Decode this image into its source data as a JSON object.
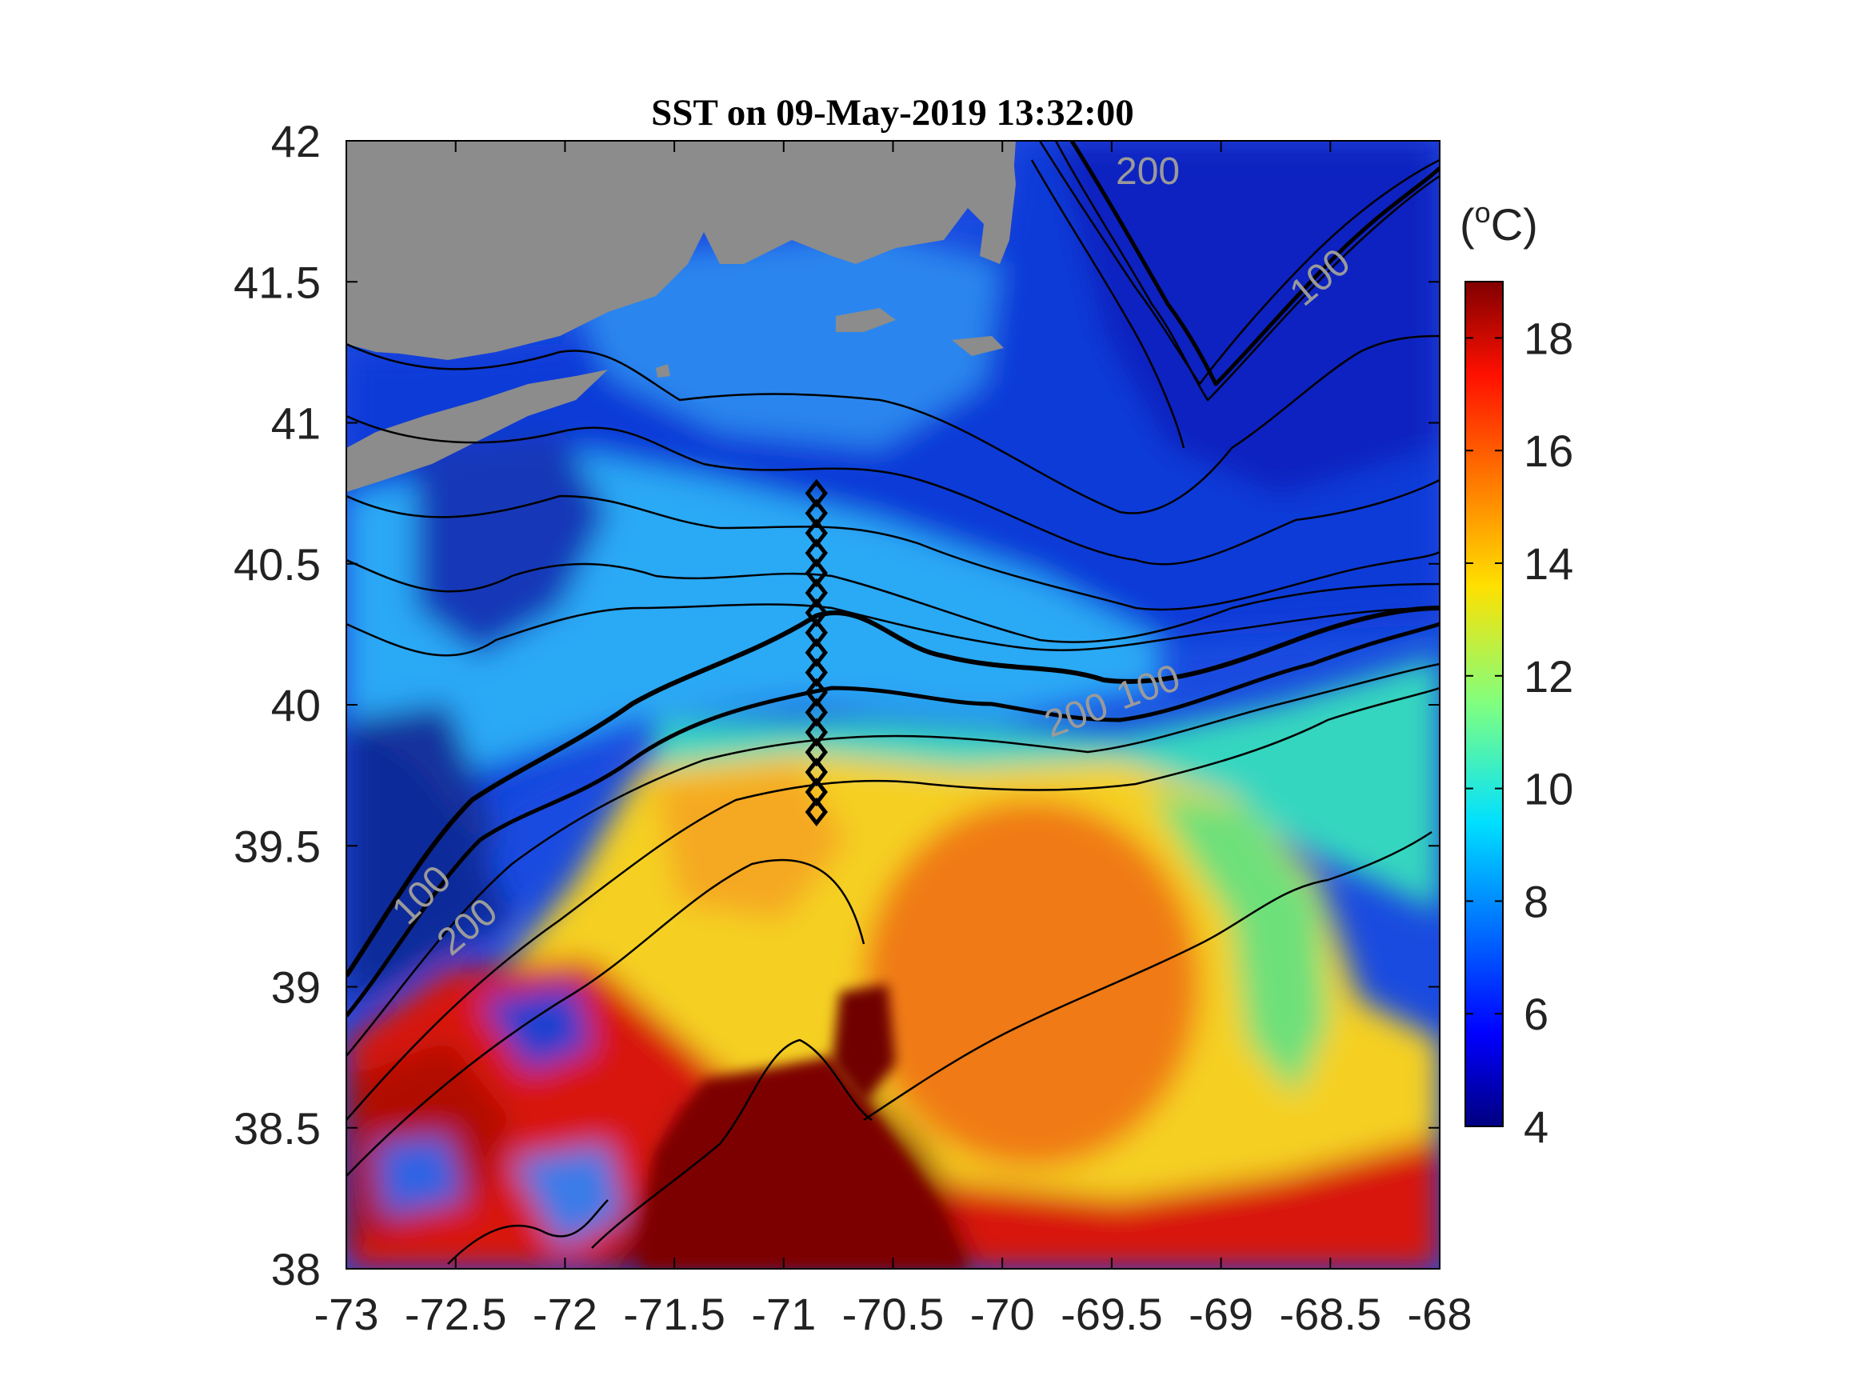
{
  "title": "SST on 09-May-2019 13:32:00",
  "colorbar": {
    "unit_label": "(°C)",
    "unit_prefix": "(",
    "unit_sup": "o",
    "unit_suffix": "C)",
    "min": 4,
    "max": 19,
    "ticks": [
      "4",
      "6",
      "8",
      "10",
      "12",
      "14",
      "16",
      "18"
    ],
    "colormap": "jet"
  },
  "axes": {
    "x_ticks": [
      "-73",
      "-72.5",
      "-72",
      "-71.5",
      "-71",
      "-70.5",
      "-70",
      "-69.5",
      "-69",
      "-68.5",
      "-68"
    ],
    "y_ticks": [
      "42",
      "41.5",
      "41",
      "40.5",
      "40",
      "39.5",
      "39",
      "38.5",
      "38"
    ],
    "xlim": [
      -73,
      -68
    ],
    "ylim": [
      38,
      42
    ]
  },
  "contour_labels": [
    "200",
    "100",
    "100",
    "200",
    "100",
    "200"
  ],
  "transect": {
    "name": "station-transect",
    "longitude": -70.85,
    "lat_start": 39.62,
    "lat_end": 40.75,
    "stations": 17
  },
  "colors": {
    "land": "#8c8c8c",
    "contour": "#000000",
    "contour_label": "#9a9a9a",
    "frame": "#000000"
  }
}
